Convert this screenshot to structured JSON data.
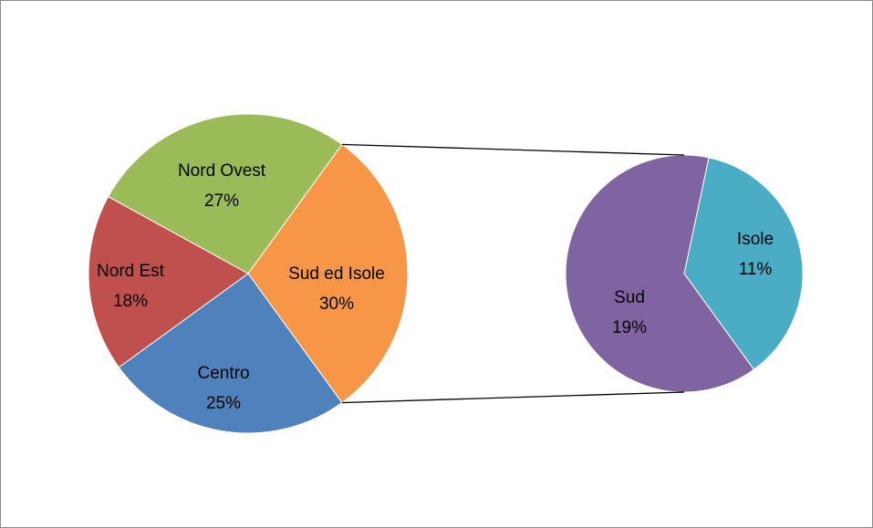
{
  "chart_data": {
    "type": "pie-of-pie",
    "categories": [
      "Nord Ovest",
      "Nord Est",
      "Centro",
      "Sud ed Isole"
    ],
    "values": [
      27,
      18,
      25,
      30
    ],
    "value_labels": [
      "27%",
      "18%",
      "25%",
      "30%"
    ],
    "colors": [
      "#9bbb59",
      "#c0504d",
      "#4f81bd",
      "#f79646"
    ],
    "secondary": {
      "categories": [
        "Sud",
        "Isole"
      ],
      "values": [
        19,
        11
      ],
      "value_labels": [
        "19%",
        "11%"
      ],
      "colors": [
        "#8064a2",
        "#4bacc6"
      ]
    }
  }
}
